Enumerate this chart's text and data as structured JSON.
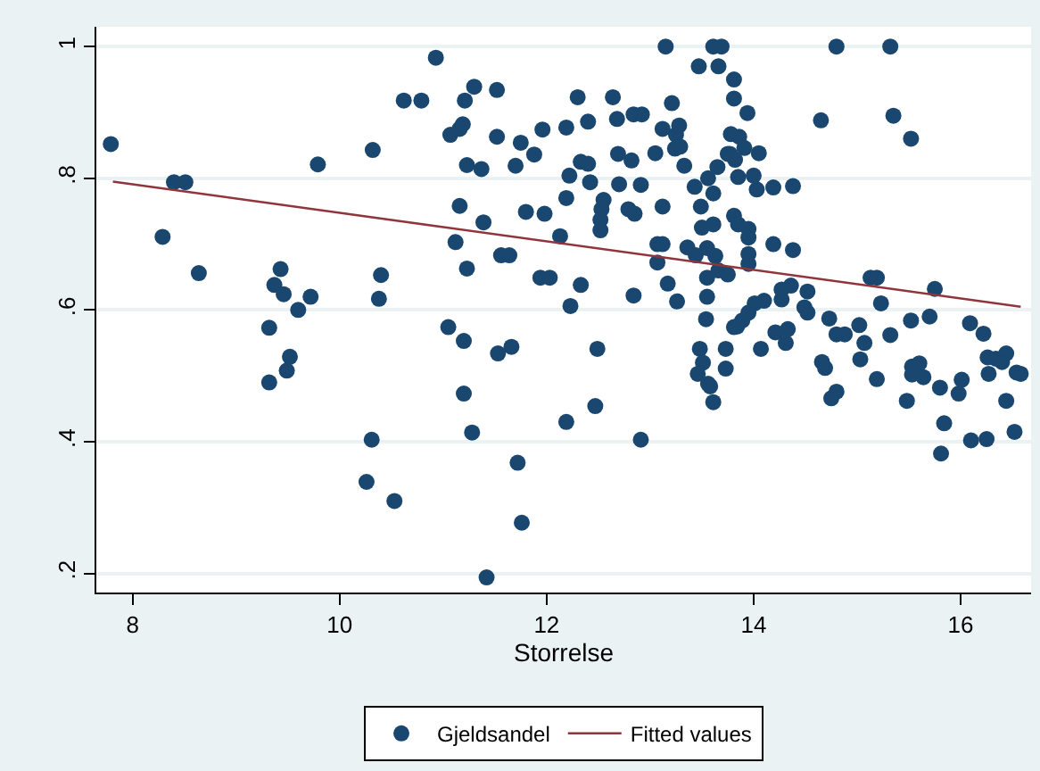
{
  "chart_data": {
    "type": "scatter",
    "xlabel": "Storrelse",
    "xlim": [
      7.65,
      16.68
    ],
    "ylim": [
      0.171,
      1.03
    ],
    "xticks": [
      8,
      10,
      12,
      14,
      16
    ],
    "yticks": [
      {
        "value": 0.2,
        "label": ".2"
      },
      {
        "value": 0.4,
        "label": ".4"
      },
      {
        "value": 0.6,
        "label": ".6"
      },
      {
        "value": 0.8,
        "label": ".8"
      },
      {
        "value": 1,
        "label": "1"
      }
    ],
    "grid": "y",
    "legend": "bottom",
    "series": [
      {
        "name": "Gjeldsandel",
        "marker": "circle",
        "color": "#1a476f",
        "x": [
          7.79,
          8.29,
          8.4,
          8.51,
          8.64,
          9.79,
          9.43,
          9.37,
          9.46,
          9.72,
          9.6,
          9.32,
          9.52,
          9.49,
          9.32,
          10.32,
          10.4,
          10.38,
          10.31,
          10.26,
          10.53,
          10.62,
          10.79,
          10.93,
          13.15,
          13.61,
          13.69,
          13.47,
          13.66,
          13.81,
          11.21,
          11.3,
          11.52,
          11.07,
          11.16,
          11.19,
          11.52,
          11.75,
          11.96,
          11.88,
          11.23,
          11.37,
          11.7,
          12.19,
          12.3,
          12.4,
          12.64,
          12.68,
          12.84,
          12.92,
          13.21,
          13.12,
          13.25,
          13.28,
          13.24,
          13.29,
          12.22,
          12.33,
          12.4,
          12.69,
          12.82,
          13.05,
          13.33,
          12.42,
          12.7,
          12.91,
          12.19,
          12.55,
          12.53,
          12.52,
          12.52,
          12.79,
          12.85,
          13.12,
          11.16,
          11.39,
          11.8,
          11.98,
          12.13,
          11.12,
          11.23,
          11.56,
          11.64,
          11.94,
          12.03,
          12.33,
          12.23,
          12.84,
          13.17,
          13.26,
          13.07,
          13.12,
          13.07,
          13.36,
          13.44,
          13.55,
          13.55,
          13.55,
          13.54,
          13.43,
          13.49,
          13.5,
          13.61,
          13.56,
          13.65,
          13.61,
          13.75,
          11.05,
          11.2,
          11.53,
          11.66,
          12.49,
          11.2,
          11.28,
          12.19,
          12.47,
          12.91,
          11.72,
          11.76,
          11.42,
          13.48,
          13.51,
          13.46,
          13.56,
          13.58,
          13.61,
          13.73,
          13.73,
          13.81,
          13.81,
          13.78,
          13.81,
          13.63,
          13.66,
          13.75,
          13.94,
          13.86,
          13.91,
          13.77,
          13.82,
          14.05,
          13.85,
          14.0,
          14.03,
          14.19,
          14.38,
          14.65,
          14.8,
          15.32,
          15.35,
          15.52,
          13.85,
          13.95,
          13.95,
          13.95,
          13.95,
          14.19,
          14.38,
          14.27,
          14.36,
          14.27,
          14.52,
          14.49,
          14.52,
          14.01,
          14.1,
          13.95,
          13.89,
          13.84,
          14.21,
          14.33,
          14.31,
          14.07,
          14.73,
          14.8,
          14.88,
          15.02,
          15.07,
          14.66,
          14.69,
          15.03,
          14.75,
          14.8,
          15.19,
          15.13,
          15.19,
          15.23,
          15.32,
          15.52,
          15.7,
          15.75,
          15.48,
          15.53,
          15.6,
          15.53,
          15.64,
          15.8,
          15.84,
          15.81,
          16.01,
          15.98,
          16.09,
          16.22,
          16.1,
          16.25,
          16.26,
          16.27,
          16.34,
          16.44,
          16.4,
          16.44,
          16.52,
          16.54,
          16.58
        ],
        "values": [
          0.852,
          0.711,
          0.794,
          0.794,
          0.656,
          0.821,
          0.662,
          0.638,
          0.624,
          0.62,
          0.6,
          0.573,
          0.529,
          0.508,
          0.49,
          0.843,
          0.653,
          0.617,
          0.403,
          0.339,
          0.31,
          0.918,
          0.918,
          0.983,
          1.0,
          1.0,
          1.0,
          0.97,
          0.97,
          0.95,
          0.918,
          0.939,
          0.934,
          0.866,
          0.875,
          0.882,
          0.863,
          0.854,
          0.874,
          0.836,
          0.82,
          0.814,
          0.819,
          0.877,
          0.923,
          0.886,
          0.923,
          0.89,
          0.897,
          0.897,
          0.914,
          0.875,
          0.866,
          0.88,
          0.845,
          0.848,
          0.804,
          0.825,
          0.822,
          0.837,
          0.827,
          0.838,
          0.819,
          0.794,
          0.791,
          0.79,
          0.77,
          0.767,
          0.753,
          0.737,
          0.721,
          0.753,
          0.746,
          0.757,
          0.758,
          0.733,
          0.749,
          0.746,
          0.712,
          0.703,
          0.663,
          0.683,
          0.683,
          0.649,
          0.649,
          0.638,
          0.606,
          0.622,
          0.64,
          0.613,
          0.7,
          0.7,
          0.672,
          0.695,
          0.683,
          0.694,
          0.649,
          0.62,
          0.586,
          0.787,
          0.757,
          0.725,
          0.777,
          0.8,
          0.817,
          0.73,
          0.837,
          0.574,
          0.553,
          0.534,
          0.544,
          0.541,
          0.473,
          0.414,
          0.43,
          0.454,
          0.403,
          0.368,
          0.277,
          0.194,
          0.541,
          0.52,
          0.503,
          0.488,
          0.484,
          0.46,
          0.541,
          0.511,
          0.574,
          0.743,
          0.867,
          0.921,
          0.682,
          0.66,
          0.654,
          0.899,
          0.863,
          0.846,
          0.837,
          0.828,
          0.838,
          0.802,
          0.804,
          0.783,
          0.786,
          0.788,
          0.888,
          1.0,
          1.0,
          0.895,
          0.86,
          0.73,
          0.723,
          0.71,
          0.685,
          0.67,
          0.7,
          0.691,
          0.631,
          0.637,
          0.616,
          0.628,
          0.604,
          0.596,
          0.61,
          0.614,
          0.596,
          0.584,
          0.575,
          0.566,
          0.571,
          0.55,
          0.541,
          0.587,
          0.563,
          0.563,
          0.577,
          0.55,
          0.521,
          0.512,
          0.525,
          0.466,
          0.476,
          0.495,
          0.649,
          0.649,
          0.61,
          0.562,
          0.584,
          0.59,
          0.632,
          0.462,
          0.514,
          0.519,
          0.502,
          0.498,
          0.482,
          0.428,
          0.382,
          0.494,
          0.473,
          0.58,
          0.564,
          0.402,
          0.404,
          0.528,
          0.503,
          0.526,
          0.534,
          0.521,
          0.462,
          0.415,
          0.505,
          0.503
        ]
      },
      {
        "name": "Fitted values",
        "type": "line",
        "marker": "none",
        "line_style": "solid",
        "color": "#90353b",
        "x": [
          7.81,
          16.58
        ],
        "values": [
          0.795,
          0.605
        ]
      }
    ]
  }
}
